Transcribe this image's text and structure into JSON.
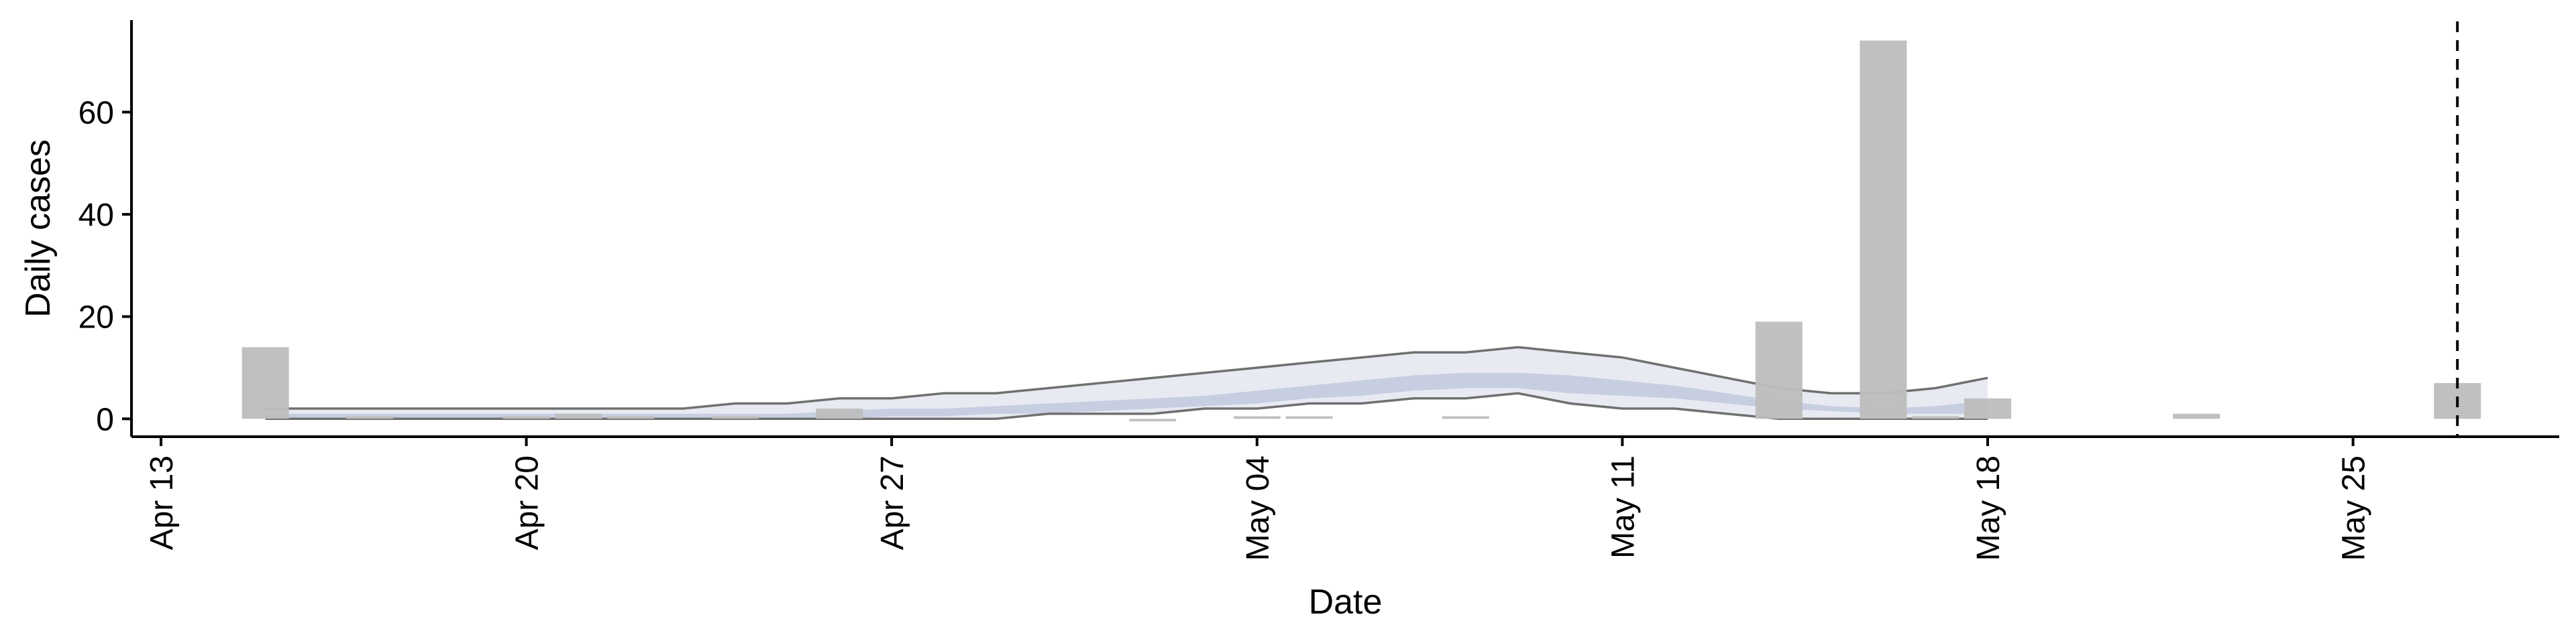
{
  "chart_data": {
    "type": "bar",
    "title": "",
    "xlabel": "Date",
    "ylabel": "Daily cases",
    "x_axis": {
      "type": "date",
      "range": [
        "2020-04-11",
        "2020-06-01"
      ],
      "ticks": [
        {
          "date": "2020-04-13",
          "label": "Apr 13"
        },
        {
          "date": "2020-04-20",
          "label": "Apr 20"
        },
        {
          "date": "2020-04-27",
          "label": "Apr 27"
        },
        {
          "date": "2020-05-04",
          "label": "May 04"
        },
        {
          "date": "2020-05-11",
          "label": "May 11"
        },
        {
          "date": "2020-05-18",
          "label": "May 18"
        },
        {
          "date": "2020-05-25",
          "label": "May 25"
        }
      ]
    },
    "y_axis": {
      "range": [
        -3.5,
        78
      ],
      "ticks": [
        {
          "value": 0,
          "label": "0"
        },
        {
          "value": 20,
          "label": "20"
        },
        {
          "value": 40,
          "label": "40"
        },
        {
          "value": 60,
          "label": "60"
        }
      ]
    },
    "grid": false,
    "legend": "none",
    "colors": {
      "bars": "#bdbdbd",
      "band_outer": "#e4e6f0",
      "band_inner": "#c3cbdf",
      "band_edge": "#707070",
      "axis": "#000000",
      "vline": "#000000"
    },
    "bars": [
      {
        "date": "2020-04-15",
        "value": 14
      },
      {
        "date": "2020-04-17",
        "value": 0.5
      },
      {
        "date": "2020-04-20",
        "value": 0.5
      },
      {
        "date": "2020-04-21",
        "value": 1
      },
      {
        "date": "2020-04-22",
        "value": 0.5
      },
      {
        "date": "2020-04-24",
        "value": 0.5
      },
      {
        "date": "2020-04-26",
        "value": 2
      },
      {
        "date": "2020-05-02",
        "value": -0.5
      },
      {
        "date": "2020-05-04",
        "value": 0.5
      },
      {
        "date": "2020-05-05",
        "value": 0.5
      },
      {
        "date": "2020-05-08",
        "value": 0.5
      },
      {
        "date": "2020-05-14",
        "value": 19
      },
      {
        "date": "2020-05-16",
        "value": 74
      },
      {
        "date": "2020-05-17",
        "value": 0.5
      },
      {
        "date": "2020-05-18",
        "value": 4
      },
      {
        "date": "2020-05-22",
        "value": 1
      },
      {
        "date": "2020-05-27",
        "value": 7
      }
    ],
    "band": [
      {
        "date": "2020-04-15",
        "lo": 0,
        "q25": 0,
        "q75": 1,
        "hi": 2
      },
      {
        "date": "2020-04-16",
        "lo": 0,
        "q25": 0,
        "q75": 1,
        "hi": 2
      },
      {
        "date": "2020-04-17",
        "lo": 0,
        "q25": 0,
        "q75": 1,
        "hi": 2
      },
      {
        "date": "2020-04-18",
        "lo": 0,
        "q25": 0,
        "q75": 1,
        "hi": 2
      },
      {
        "date": "2020-04-19",
        "lo": 0,
        "q25": 0,
        "q75": 1,
        "hi": 2
      },
      {
        "date": "2020-04-20",
        "lo": 0,
        "q25": 0,
        "q75": 1,
        "hi": 2
      },
      {
        "date": "2020-04-21",
        "lo": 0,
        "q25": 0,
        "q75": 1,
        "hi": 2
      },
      {
        "date": "2020-04-22",
        "lo": 0,
        "q25": 0,
        "q75": 1,
        "hi": 2
      },
      {
        "date": "2020-04-23",
        "lo": 0,
        "q25": 0,
        "q75": 1,
        "hi": 2
      },
      {
        "date": "2020-04-24",
        "lo": 0,
        "q25": 0,
        "q75": 1,
        "hi": 3
      },
      {
        "date": "2020-04-25",
        "lo": 0,
        "q25": 0,
        "q75": 1,
        "hi": 3
      },
      {
        "date": "2020-04-26",
        "lo": 0,
        "q25": 0,
        "q75": 1.5,
        "hi": 4
      },
      {
        "date": "2020-04-27",
        "lo": 0,
        "q25": 0.5,
        "q75": 2,
        "hi": 4
      },
      {
        "date": "2020-04-28",
        "lo": 0,
        "q25": 0.5,
        "q75": 2,
        "hi": 5
      },
      {
        "date": "2020-04-29",
        "lo": 0,
        "q25": 1,
        "q75": 2.5,
        "hi": 5
      },
      {
        "date": "2020-04-30",
        "lo": 1,
        "q25": 1,
        "q75": 3,
        "hi": 6
      },
      {
        "date": "2020-05-01",
        "lo": 1,
        "q25": 1.5,
        "q75": 3.5,
        "hi": 7
      },
      {
        "date": "2020-05-02",
        "lo": 1,
        "q25": 2,
        "q75": 4,
        "hi": 8
      },
      {
        "date": "2020-05-03",
        "lo": 2,
        "q25": 2.5,
        "q75": 4.5,
        "hi": 9
      },
      {
        "date": "2020-05-04",
        "lo": 2,
        "q25": 3,
        "q75": 5.5,
        "hi": 10
      },
      {
        "date": "2020-05-05",
        "lo": 3,
        "q25": 4,
        "q75": 6.5,
        "hi": 11
      },
      {
        "date": "2020-05-06",
        "lo": 3,
        "q25": 4.5,
        "q75": 7.5,
        "hi": 12
      },
      {
        "date": "2020-05-07",
        "lo": 4,
        "q25": 5.5,
        "q75": 8.5,
        "hi": 13
      },
      {
        "date": "2020-05-08",
        "lo": 4,
        "q25": 6,
        "q75": 9,
        "hi": 13
      },
      {
        "date": "2020-05-09",
        "lo": 5,
        "q25": 6,
        "q75": 9,
        "hi": 14
      },
      {
        "date": "2020-05-10",
        "lo": 3,
        "q25": 5,
        "q75": 8.5,
        "hi": 13
      },
      {
        "date": "2020-05-11",
        "lo": 2,
        "q25": 4.5,
        "q75": 7.5,
        "hi": 12
      },
      {
        "date": "2020-05-12",
        "lo": 2,
        "q25": 4,
        "q75": 6.5,
        "hi": 10
      },
      {
        "date": "2020-05-13",
        "lo": 1,
        "q25": 3,
        "q75": 5,
        "hi": 8
      },
      {
        "date": "2020-05-14",
        "lo": 0,
        "q25": 2,
        "q75": 3.5,
        "hi": 6
      },
      {
        "date": "2020-05-15",
        "lo": 0,
        "q25": 1.5,
        "q75": 2.5,
        "hi": 5
      },
      {
        "date": "2020-05-16",
        "lo": 0,
        "q25": 1,
        "q75": 2,
        "hi": 5
      },
      {
        "date": "2020-05-17",
        "lo": 0,
        "q25": 1,
        "q75": 2.5,
        "hi": 6
      },
      {
        "date": "2020-05-18",
        "lo": 0,
        "q25": 1,
        "q75": 3.5,
        "hi": 8
      }
    ],
    "vline_date": "2020-05-27"
  }
}
